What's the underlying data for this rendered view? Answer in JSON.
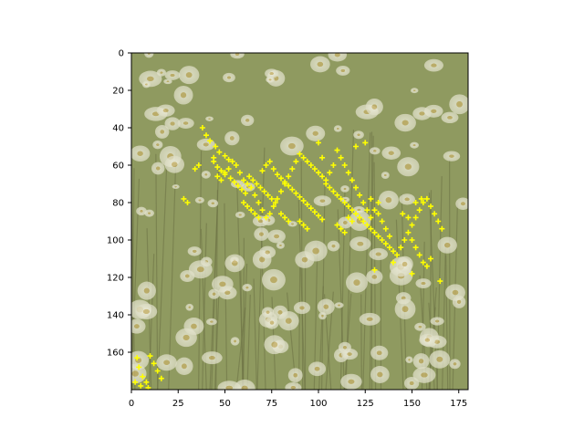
{
  "chart_data": {
    "type": "scatter",
    "background": "image",
    "image_description_colors": {
      "meadow_green": "#8e9a5c",
      "daisy_white": "#e8e6d2",
      "daisy_center": "#c9b26a",
      "stem_dark": "#6e7446"
    },
    "marker": {
      "shape": "plus",
      "color": "#ffff00"
    },
    "xlim": [
      0,
      180
    ],
    "ylim": [
      180,
      0
    ],
    "y_inverted": true,
    "xticks": [
      0,
      25,
      50,
      75,
      100,
      125,
      150,
      175
    ],
    "yticks": [
      0,
      20,
      40,
      60,
      80,
      100,
      120,
      140,
      160
    ],
    "title": "",
    "xlabel": "",
    "ylabel": "",
    "grid": false,
    "series": [
      {
        "points": [
          [
            38,
            40
          ],
          [
            40,
            44
          ],
          [
            42,
            47
          ],
          [
            45,
            50
          ],
          [
            47,
            53
          ],
          [
            50,
            55
          ],
          [
            52,
            57
          ],
          [
            44,
            58
          ],
          [
            46,
            61
          ],
          [
            48,
            63
          ],
          [
            50,
            65
          ],
          [
            53,
            67
          ],
          [
            55,
            69
          ],
          [
            57,
            71
          ],
          [
            59,
            73
          ],
          [
            61,
            75
          ],
          [
            63,
            66
          ],
          [
            65,
            68
          ],
          [
            67,
            70
          ],
          [
            69,
            72
          ],
          [
            71,
            74
          ],
          [
            73,
            76
          ],
          [
            75,
            78
          ],
          [
            77,
            80
          ],
          [
            60,
            80
          ],
          [
            62,
            82
          ],
          [
            64,
            84
          ],
          [
            66,
            86
          ],
          [
            68,
            88
          ],
          [
            70,
            63
          ],
          [
            72,
            60
          ],
          [
            74,
            58
          ],
          [
            76,
            62
          ],
          [
            78,
            65
          ],
          [
            80,
            67
          ],
          [
            82,
            69
          ],
          [
            84,
            71
          ],
          [
            86,
            73
          ],
          [
            88,
            75
          ],
          [
            90,
            77
          ],
          [
            92,
            79
          ],
          [
            94,
            81
          ],
          [
            96,
            83
          ],
          [
            98,
            85
          ],
          [
            100,
            87
          ],
          [
            102,
            89
          ],
          [
            104,
            70
          ],
          [
            106,
            72
          ],
          [
            108,
            74
          ],
          [
            110,
            76
          ],
          [
            112,
            78
          ],
          [
            114,
            80
          ],
          [
            116,
            82
          ],
          [
            118,
            84
          ],
          [
            120,
            86
          ],
          [
            122,
            88
          ],
          [
            124,
            90
          ],
          [
            126,
            92
          ],
          [
            128,
            94
          ],
          [
            130,
            96
          ],
          [
            132,
            98
          ],
          [
            134,
            100
          ],
          [
            136,
            102
          ],
          [
            138,
            104
          ],
          [
            140,
            106
          ],
          [
            142,
            108
          ],
          [
            144,
            104
          ],
          [
            146,
            100
          ],
          [
            148,
            96
          ],
          [
            150,
            92
          ],
          [
            152,
            88
          ],
          [
            154,
            84
          ],
          [
            156,
            80
          ],
          [
            158,
            78
          ],
          [
            160,
            82
          ],
          [
            162,
            86
          ],
          [
            164,
            90
          ],
          [
            166,
            94
          ],
          [
            150,
            100
          ],
          [
            152,
            104
          ],
          [
            154,
            108
          ],
          [
            156,
            112
          ],
          [
            140,
            112
          ],
          [
            138,
            98
          ],
          [
            136,
            94
          ],
          [
            134,
            90
          ],
          [
            132,
            86
          ],
          [
            130,
            84
          ],
          [
            128,
            88
          ],
          [
            126,
            84
          ],
          [
            124,
            80
          ],
          [
            122,
            76
          ],
          [
            120,
            72
          ],
          [
            118,
            68
          ],
          [
            116,
            64
          ],
          [
            114,
            60
          ],
          [
            112,
            56
          ],
          [
            110,
            52
          ],
          [
            108,
            60
          ],
          [
            106,
            64
          ],
          [
            104,
            68
          ],
          [
            102,
            66
          ],
          [
            100,
            64
          ],
          [
            98,
            62
          ],
          [
            96,
            60
          ],
          [
            94,
            58
          ],
          [
            92,
            56
          ],
          [
            90,
            54
          ],
          [
            88,
            58
          ],
          [
            86,
            62
          ],
          [
            84,
            66
          ],
          [
            82,
            70
          ],
          [
            80,
            74
          ],
          [
            78,
            78
          ],
          [
            76,
            82
          ],
          [
            74,
            86
          ],
          [
            72,
            88
          ],
          [
            70,
            84
          ],
          [
            68,
            80
          ],
          [
            66,
            76
          ],
          [
            64,
            72
          ],
          [
            62,
            70
          ],
          [
            60,
            68
          ],
          [
            58,
            64
          ],
          [
            56,
            60
          ],
          [
            54,
            58
          ],
          [
            52,
            62
          ],
          [
            50,
            64
          ],
          [
            48,
            68
          ],
          [
            46,
            66
          ],
          [
            44,
            56
          ],
          [
            36,
            60
          ],
          [
            34,
            62
          ],
          [
            28,
            78
          ],
          [
            30,
            80
          ],
          [
            100,
            48
          ],
          [
            102,
            56
          ],
          [
            120,
            50
          ],
          [
            125,
            48
          ],
          [
            128,
            78
          ],
          [
            132,
            80
          ],
          [
            145,
            86
          ],
          [
            148,
            88
          ],
          [
            152,
            80
          ],
          [
            155,
            78
          ],
          [
            160,
            110
          ],
          [
            158,
            114
          ],
          [
            165,
            122
          ],
          [
            150,
            118
          ],
          [
            130,
            116
          ],
          [
            110,
            92
          ],
          [
            112,
            94
          ],
          [
            114,
            96
          ],
          [
            116,
            88
          ],
          [
            118,
            90
          ],
          [
            90,
            90
          ],
          [
            92,
            92
          ],
          [
            94,
            94
          ],
          [
            80,
            86
          ],
          [
            82,
            88
          ],
          [
            84,
            90
          ],
          [
            3,
            163
          ],
          [
            4,
            168
          ],
          [
            6,
            173
          ],
          [
            8,
            176
          ],
          [
            10,
            162
          ],
          [
            12,
            166
          ],
          [
            14,
            170
          ],
          [
            16,
            174
          ],
          [
            5,
            178
          ],
          [
            9,
            179
          ],
          [
            2,
            176
          ]
        ]
      }
    ]
  }
}
